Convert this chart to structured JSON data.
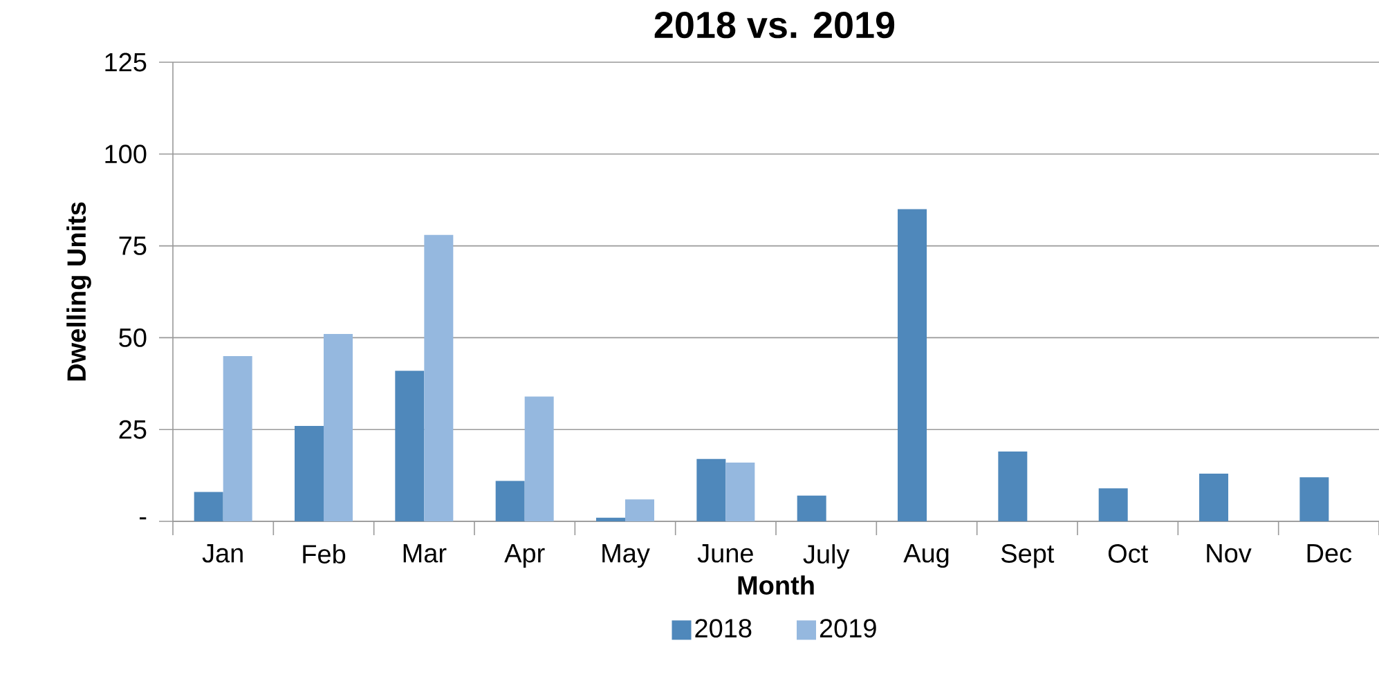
{
  "chart_data": {
    "type": "bar",
    "title": "2018 vs. 2019",
    "xlabel": "Month",
    "ylabel": "Dwelling Units",
    "categories": [
      "Jan",
      "Feb",
      "Mar",
      "Apr",
      "May",
      "June",
      "July",
      "Aug",
      "Sept",
      "Oct",
      "Nov",
      "Dec"
    ],
    "series": [
      {
        "name": "2018",
        "color": "#4f88bb",
        "values": [
          8,
          26,
          41,
          11,
          1,
          17,
          7,
          85,
          19,
          9,
          13,
          12
        ]
      },
      {
        "name": "2019",
        "color": "#95b8df",
        "values": [
          45,
          51,
          78,
          34,
          6,
          16,
          null,
          null,
          null,
          null,
          null,
          null
        ]
      }
    ],
    "ylim": [
      0,
      125
    ],
    "yticks": [
      {
        "value": 0,
        "label": "-"
      },
      25,
      50,
      75,
      100,
      125
    ],
    "grid": "y",
    "legend": "bottom"
  }
}
